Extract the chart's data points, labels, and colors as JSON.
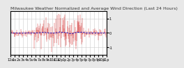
{
  "title": "Milwaukee Weather Normalized and Average Wind Direction (Last 24 Hours)",
  "background_color": "#e8e8e8",
  "plot_bg_color": "#ffffff",
  "n_points": 288,
  "red_line_color": "#cc0000",
  "blue_line_color": "#0000cc",
  "grid_color": "#cccccc",
  "ylim": [
    -1.5,
    1.5
  ],
  "title_fontsize": 4.5,
  "tick_fontsize": 3.5,
  "n_xticks": 24,
  "yticks": [
    -1,
    0,
    1
  ],
  "ytick_labels": [
    "-1",
    "0",
    "1"
  ]
}
